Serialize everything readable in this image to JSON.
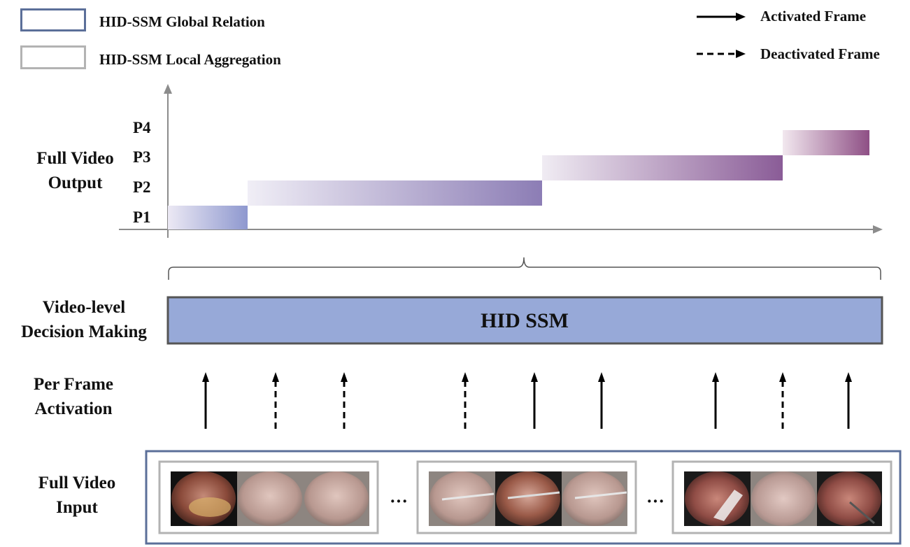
{
  "legend": {
    "global_relation": "HID-SSM Global Relation",
    "local_aggregation": "HID-SSM Local Aggregation",
    "activated_frame": "Activated Frame",
    "deactivated_frame": "Deactivated Frame"
  },
  "colors": {
    "global_border": "#5b6f99",
    "local_border": "#b3b3b3",
    "hid_fill": "#97a9d8",
    "hid_border": "#555555",
    "phase_start": "#ece9f4",
    "phase_p1_end": "#8e98cf",
    "phase_p2_end": "#8c7db5",
    "phase_p3_end": "#8a5c97",
    "phase_p4_end": "#8e4f85"
  },
  "output": {
    "side_label": [
      "Full Video",
      "Output"
    ],
    "phases": [
      "P1",
      "P2",
      "P3",
      "P4"
    ]
  },
  "decision": {
    "side_label": [
      "Video-level",
      "Decision Making"
    ],
    "box_label": "HID SSM"
  },
  "activation": {
    "side_label": [
      "Per Frame",
      "Activation"
    ],
    "frames": [
      "activated",
      "deactivated",
      "deactivated",
      "deactivated",
      "activated",
      "activated",
      "activated",
      "deactivated",
      "activated"
    ]
  },
  "input": {
    "side_label": [
      "Full Video",
      "Input"
    ],
    "ellipsis": "···"
  }
}
